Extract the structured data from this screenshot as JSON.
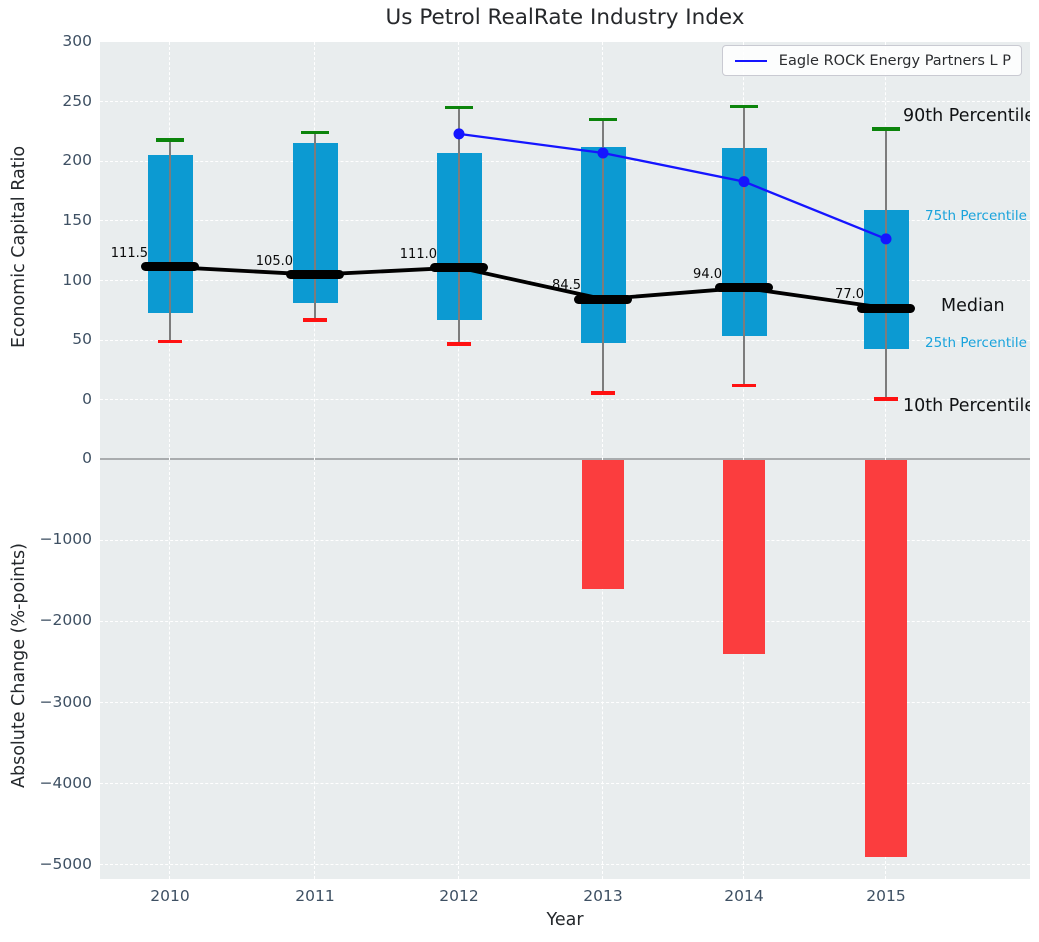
{
  "figure": {
    "title": "Us Petrol RealRate Industry Index",
    "xlabel": "Year",
    "legend_label": "Eagle ROCK Energy Partners L P"
  },
  "colors": {
    "plot_bg": "#e9edee",
    "box_fill": "#0c9ad2",
    "company_line": "#1515ff",
    "median_line": "#000000",
    "p90_cap": "#0b840b",
    "p10_cap": "#ff1111",
    "change_bar": "#fb3d3e",
    "cyan_label": "#19a3dc",
    "tick_label": "#3e5063",
    "whisker": "#7c7c7c"
  },
  "chart_data": [
    {
      "type": "box-percentile",
      "title": "Us Petrol RealRate Industry Index",
      "ylabel": "Economic Capital Ratio",
      "ylim": [
        -43,
        300
      ],
      "yticks": [
        300,
        250,
        200,
        150,
        100,
        50,
        0
      ],
      "ytick_labels": [
        "300",
        "250",
        "200",
        "150",
        "100",
        "50",
        "0"
      ],
      "grid": true,
      "categories": [
        "2010",
        "2011",
        "2012",
        "2013",
        "2014",
        "2015"
      ],
      "series": [
        {
          "name": "90th Percentile",
          "values": [
            218,
            224,
            245,
            235,
            246,
            227
          ]
        },
        {
          "name": "75th Percentile",
          "values": [
            205,
            215,
            207,
            212,
            211,
            159
          ]
        },
        {
          "name": "Median",
          "values": [
            111.5,
            105.0,
            111.0,
            84.5,
            94.0,
            77.0
          ]
        },
        {
          "name": "25th Percentile",
          "values": [
            73,
            81,
            67,
            48,
            54,
            43
          ]
        },
        {
          "name": "10th Percentile",
          "values": [
            49,
            67,
            47,
            6,
            12,
            1
          ]
        }
      ],
      "median_labels": [
        "111.5",
        "105.0",
        "111.0",
        "84.5",
        "94.0",
        "77.0"
      ],
      "company_line": {
        "name": "Eagle ROCK Energy Partners L P",
        "x": [
          "2012",
          "2013",
          "2014",
          "2015"
        ],
        "values": [
          223,
          207,
          183,
          135
        ]
      },
      "annotations": [
        "90th Percentile",
        "75th Percentile",
        "Median",
        "25th Percentile",
        "10th Percentile"
      ],
      "legend": {
        "label": "Eagle ROCK Energy Partners L P",
        "position": "upper right"
      }
    },
    {
      "type": "bar",
      "ylabel": "Absolute Change (%-points)",
      "xlabel": "Year",
      "ylim": [
        -5160,
        86
      ],
      "yticks": [
        0,
        -1000,
        -2000,
        -3000,
        -4000,
        -5000
      ],
      "ytick_labels": [
        "0",
        "−1000",
        "−2000",
        "−3000",
        "−4000",
        "−5000"
      ],
      "grid": true,
      "categories": [
        "2010",
        "2011",
        "2012",
        "2013",
        "2014",
        "2015"
      ],
      "values": [
        null,
        null,
        null,
        -1600,
        -2400,
        -4900
      ]
    }
  ]
}
